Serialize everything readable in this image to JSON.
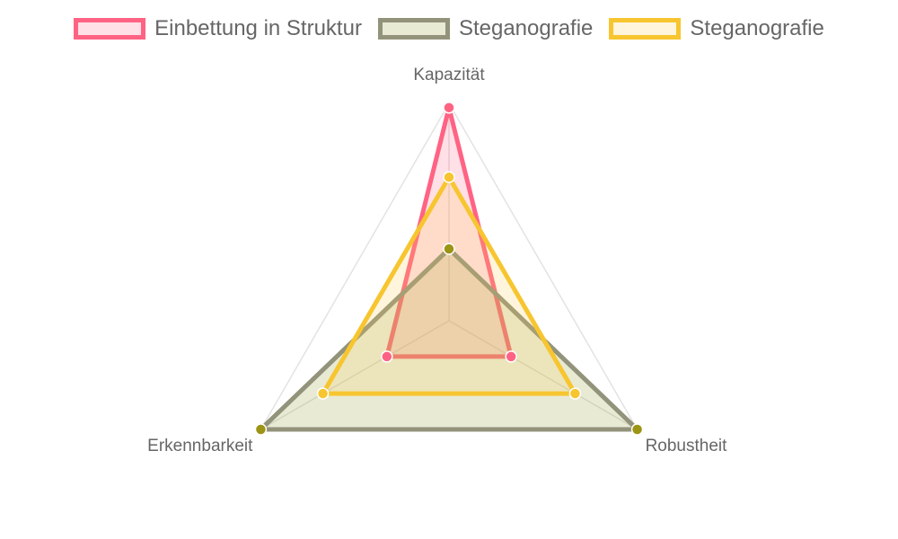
{
  "chart_data": {
    "type": "radar",
    "axes": [
      "Kapazität",
      "Robustheit",
      "Erkennbarkeit"
    ],
    "r_range": [
      0,
      1
    ],
    "grid": true,
    "legend_position": "top",
    "series": [
      {
        "name": "Einbettung in Struktur",
        "values": [
          0.98,
          0.33,
          0.33
        ],
        "color": "#ff6384",
        "fill": "rgba(255,99,132,0.2)"
      },
      {
        "name": "Steganografie",
        "values": [
          0.33,
          1.0,
          1.0
        ],
        "color": "#93937b",
        "fill": "rgba(150,160,60,0.22)",
        "point_color": "#9c9414"
      },
      {
        "name": "Steganografie",
        "values": [
          0.66,
          0.67,
          0.67
        ],
        "color": "#f7c52f",
        "fill": "rgba(255,206,86,0.2)"
      }
    ]
  }
}
